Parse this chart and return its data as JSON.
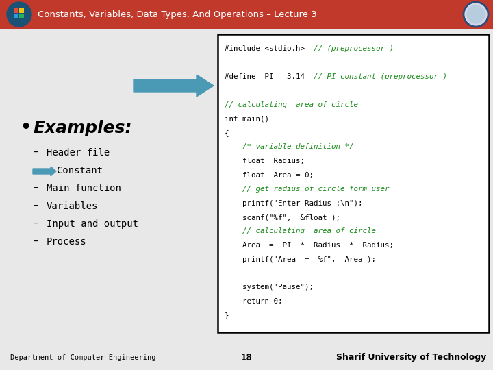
{
  "title": "Constants, Variables, Data Types, And Operations – Lecture 3",
  "title_color": "#ffffff",
  "header_bg": "#c0392b",
  "slide_bg": "#e8e8e8",
  "bullet_items": [
    {
      "text": "Header file",
      "arrow": false,
      "dash": true
    },
    {
      "text": "Constant",
      "arrow": true,
      "dash": false
    },
    {
      "text": "Main function",
      "arrow": false,
      "dash": true
    },
    {
      "text": "Variables",
      "arrow": false,
      "dash": true
    },
    {
      "text": "Input and output",
      "arrow": false,
      "dash": true
    },
    {
      "text": "Process",
      "arrow": false,
      "dash": true
    }
  ],
  "code_lines": [
    {
      "text": "#include <stdio.h>  ",
      "comment": "// (preprocessor )",
      "color": "#000000"
    },
    {
      "text": "",
      "comment": "",
      "color": "#000000"
    },
    {
      "text": "#define  PI   3.14  ",
      "comment": "// PI constant (preprocessor )",
      "color": "#000000"
    },
    {
      "text": "",
      "comment": "",
      "color": "#000000"
    },
    {
      "text": "// calculating  area of circle",
      "comment": "",
      "color": "#1a8a1a"
    },
    {
      "text": "int main()",
      "comment": "",
      "color": "#000000"
    },
    {
      "text": "{",
      "comment": "",
      "color": "#000000"
    },
    {
      "text": "    /* variable definition */",
      "comment": "",
      "color": "#1a8a1a"
    },
    {
      "text": "    float  Radius;",
      "comment": "",
      "color": "#000000"
    },
    {
      "text": "    float  Area = 0;",
      "comment": "",
      "color": "#000000"
    },
    {
      "text": "    // get radius of circle form user",
      "comment": "",
      "color": "#1a8a1a"
    },
    {
      "text": "    printf(\"Enter Radius :\\n\");",
      "comment": "",
      "color": "#000000"
    },
    {
      "text": "    scanf(\"%f\",  &float );",
      "comment": "",
      "color": "#000000"
    },
    {
      "text": "    // calculating  area of circle",
      "comment": "",
      "color": "#1a8a1a"
    },
    {
      "text": "    Area  =  PI  *  Radius  *  Radius;",
      "comment": "",
      "color": "#000000"
    },
    {
      "text": "    printf(\"Area  =  %f\",  Area );",
      "comment": "",
      "color": "#000000"
    },
    {
      "text": "",
      "comment": "",
      "color": "#000000"
    },
    {
      "text": "    system(\"Pause\");",
      "comment": "",
      "color": "#000000"
    },
    {
      "text": "    return 0;",
      "comment": "",
      "color": "#000000"
    },
    {
      "text": "}",
      "comment": "",
      "color": "#000000"
    }
  ],
  "footer_left": "Department of Computer Engineering",
  "footer_center": "18",
  "footer_right": "Sharif University of Technology",
  "arrow_color": "#4a9ab5",
  "code_box_border": "#000000",
  "code_bg": "#ffffff",
  "comment_color": "#1a8a1a"
}
